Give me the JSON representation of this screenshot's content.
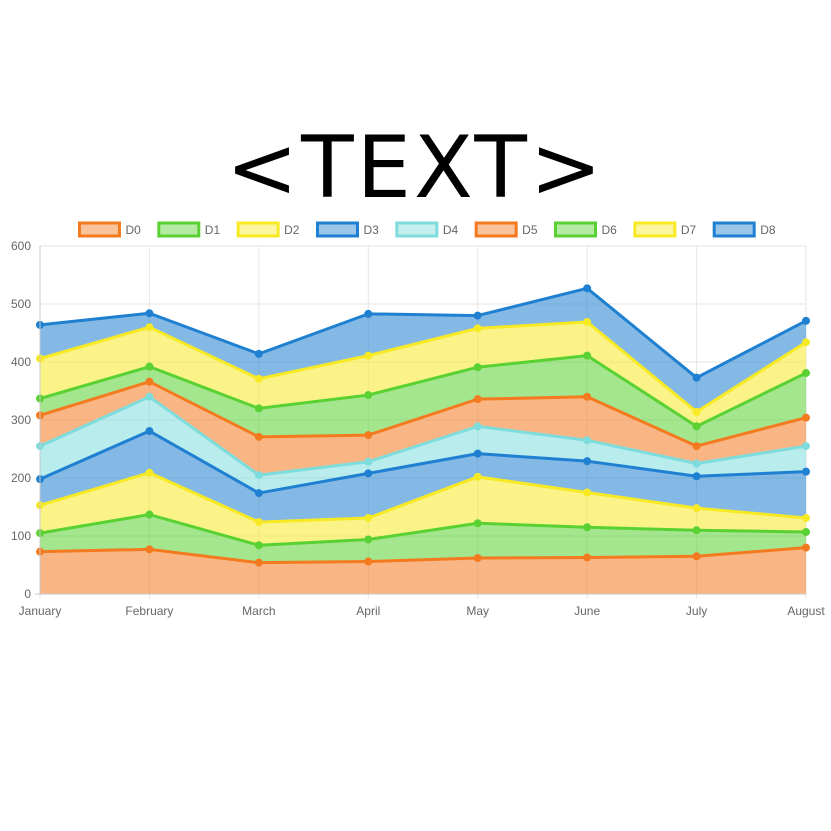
{
  "title": "<TEXT>",
  "chart_data": {
    "type": "area",
    "stacked": true,
    "categories": [
      "January",
      "February",
      "March",
      "April",
      "May",
      "June",
      "July",
      "August"
    ],
    "ylim": [
      0,
      600
    ],
    "yticks": [
      0,
      100,
      200,
      300,
      400,
      500,
      600
    ],
    "grid": true,
    "legend_position": "top",
    "series": [
      {
        "name": "D0",
        "color": "#f47a1f",
        "values": [
          73,
          77,
          54,
          56,
          62,
          63,
          65,
          80
        ]
      },
      {
        "name": "D1",
        "color": "#5ad132",
        "values": [
          32,
          60,
          30,
          38,
          60,
          52,
          45,
          27
        ]
      },
      {
        "name": "D2",
        "color": "#f7ea25",
        "values": [
          48,
          72,
          40,
          37,
          80,
          60,
          38,
          24
        ]
      },
      {
        "name": "D3",
        "color": "#1f80d1",
        "values": [
          45,
          72,
          50,
          77,
          40,
          54,
          55,
          80
        ]
      },
      {
        "name": "D4",
        "color": "#7fdcdc",
        "values": [
          57,
          59,
          31,
          20,
          47,
          36,
          22,
          44
        ]
      },
      {
        "name": "D5",
        "color": "#f47a1f",
        "values": [
          53,
          26,
          66,
          46,
          47,
          75,
          30,
          49
        ]
      },
      {
        "name": "D6",
        "color": "#5ad132",
        "values": [
          29,
          26,
          49,
          69,
          55,
          71,
          34,
          77
        ]
      },
      {
        "name": "D7",
        "color": "#f7ea25",
        "values": [
          69,
          68,
          51,
          68,
          67,
          58,
          25,
          53
        ]
      },
      {
        "name": "D8",
        "color": "#1f80d1",
        "values": [
          58,
          24,
          43,
          72,
          22,
          58,
          59,
          37
        ]
      }
    ]
  }
}
